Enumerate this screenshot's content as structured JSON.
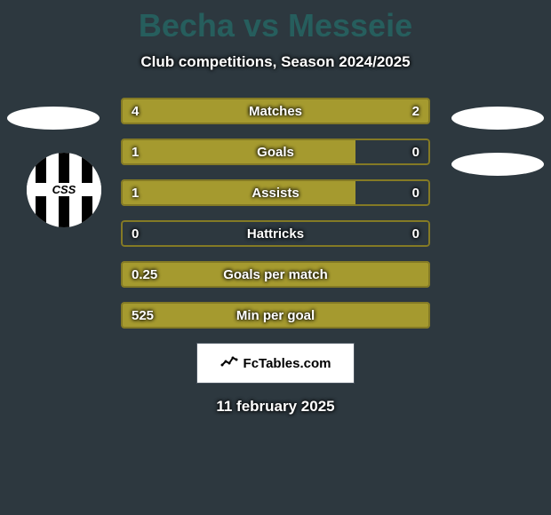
{
  "title": "Becha vs Messeie",
  "title_color": "#265e5d",
  "subtitle": "Club competitions, Season 2024/2025",
  "background_color": "#2d383f",
  "text_color": "#ffffff",
  "subtitle_shadow": "#000000",
  "accent_color": "#a59a2f",
  "border_color": "#847a25",
  "ellipse_color": "#ffffff",
  "club_logo": {
    "outer_bg": "#ffffff",
    "stripe_bg": "#000000",
    "text": "CSS",
    "text_color": "#000000"
  },
  "stats": [
    {
      "label": "Matches",
      "left_val": "4",
      "right_val": "2",
      "left_pct": 66.7,
      "right_pct": 33.3
    },
    {
      "label": "Goals",
      "left_val": "1",
      "right_val": "0",
      "left_pct": 76,
      "right_pct": 0
    },
    {
      "label": "Assists",
      "left_val": "1",
      "right_val": "0",
      "left_pct": 76,
      "right_pct": 0
    },
    {
      "label": "Hattricks",
      "left_val": "0",
      "right_val": "0",
      "left_pct": 0,
      "right_pct": 0
    },
    {
      "label": "Goals per match",
      "left_val": "0.25",
      "right_val": "",
      "left_pct": 100,
      "right_pct": 0
    },
    {
      "label": "Min per goal",
      "left_val": "525",
      "right_val": "",
      "left_pct": 100,
      "right_pct": 0
    }
  ],
  "fctables_label": "FcTables.com",
  "fctables_bg": "#ffffff",
  "fctables_text_color": "#000000",
  "date": "11 february 2025"
}
